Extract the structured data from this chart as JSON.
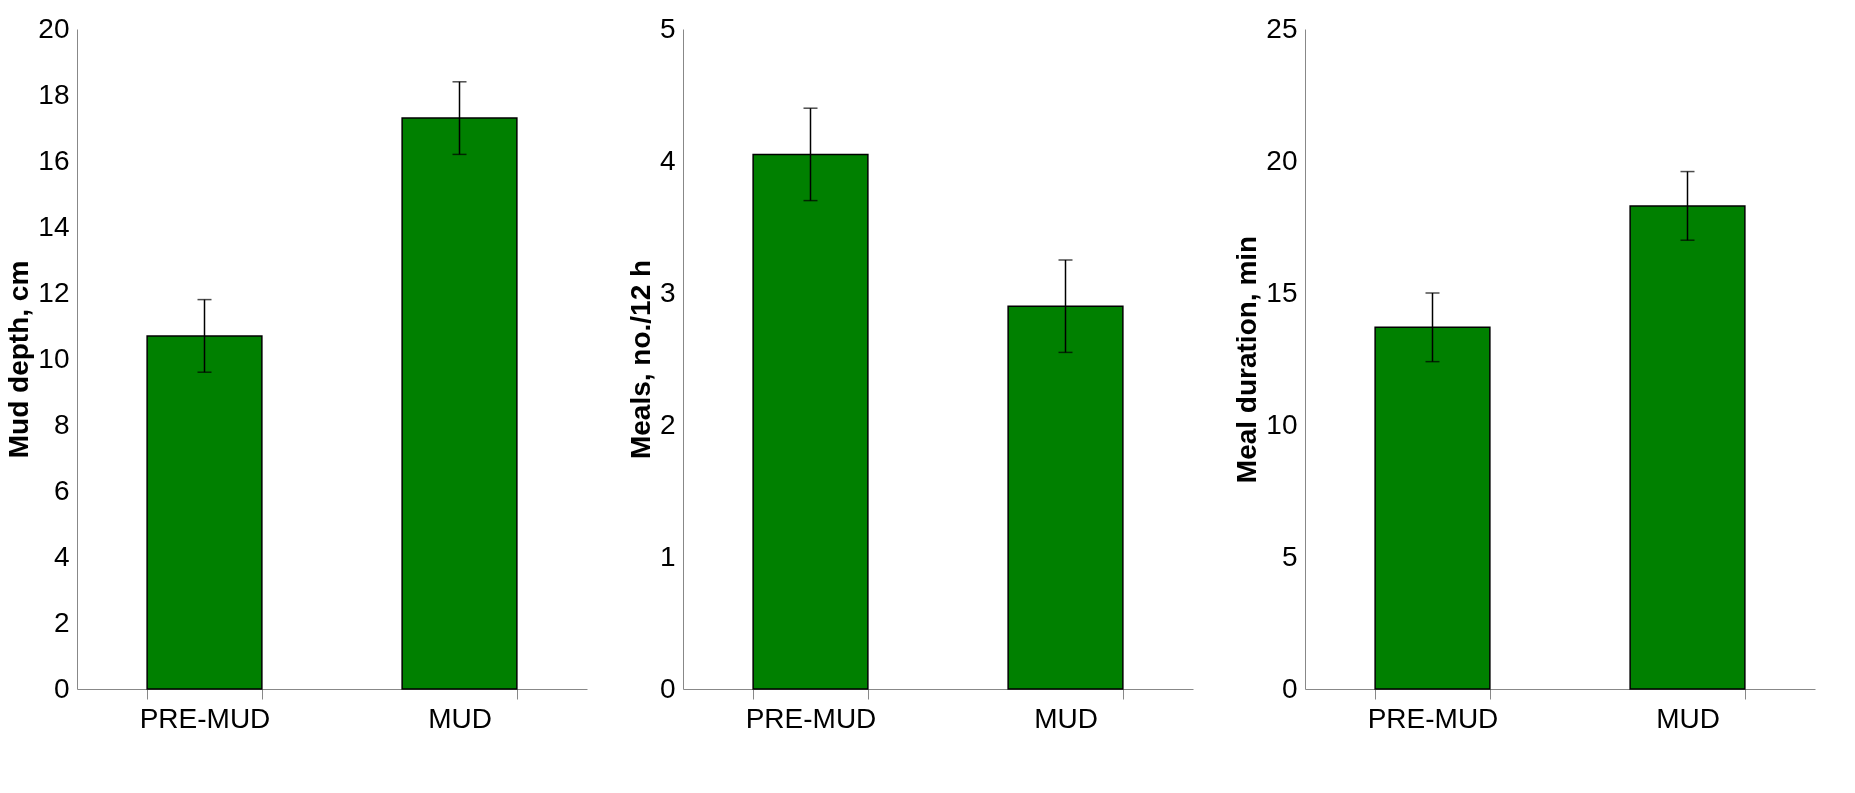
{
  "chart_data": [
    {
      "type": "bar",
      "ylabel": "Mud depth, cm",
      "categories": [
        "PRE-MUD",
        "MUD"
      ],
      "values": [
        10.7,
        17.3
      ],
      "errors": [
        1.1,
        1.1
      ],
      "color": "#008000",
      "ylim": [
        0,
        20
      ],
      "yticks": [
        0,
        2,
        4,
        6,
        8,
        10,
        12,
        14,
        16,
        18,
        20
      ]
    },
    {
      "type": "bar",
      "ylabel": "Meals, no./12 h",
      "categories": [
        "PRE-MUD",
        "MUD"
      ],
      "values": [
        4.05,
        2.9
      ],
      "errors": [
        0.35,
        0.35
      ],
      "color": "#008000",
      "ylim": [
        0,
        5
      ],
      "yticks": [
        0,
        1,
        2,
        3,
        4,
        5
      ]
    },
    {
      "type": "bar",
      "ylabel": "Meal duration, min",
      "categories": [
        "PRE-MUD",
        "MUD"
      ],
      "values": [
        13.7,
        18.3
      ],
      "errors": [
        1.3,
        1.3
      ],
      "color": "#008000",
      "ylim": [
        0,
        25
      ],
      "yticks": [
        0,
        5,
        10,
        15,
        20,
        25
      ]
    }
  ]
}
